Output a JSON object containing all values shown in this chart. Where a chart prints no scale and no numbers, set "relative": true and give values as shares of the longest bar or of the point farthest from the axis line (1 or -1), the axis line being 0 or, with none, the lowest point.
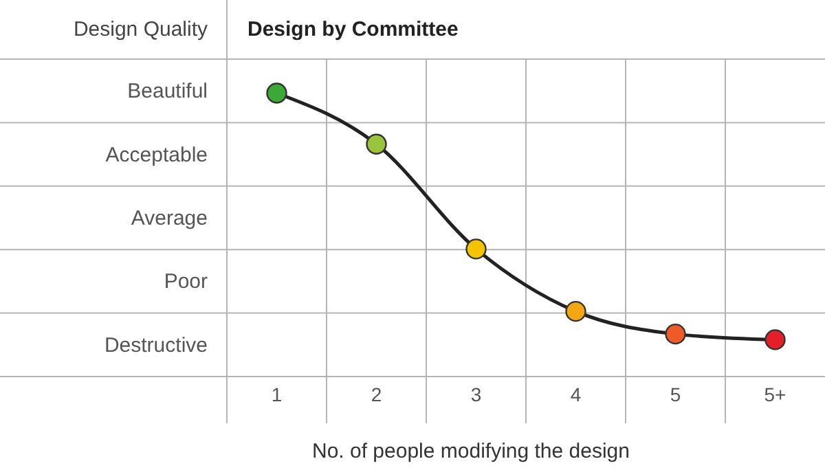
{
  "chart_data": {
    "type": "line",
    "title": "Design by Committee",
    "ylabel": "Design Quality",
    "xlabel": "No. of people modifying the design",
    "categories": [
      "1",
      "2",
      "3",
      "4",
      "5",
      "5+"
    ],
    "y_categories": [
      "Beautiful",
      "Acceptable",
      "Average",
      "Poor",
      "Destructive"
    ],
    "series": [
      {
        "color": "#222222",
        "colors": [
          "#3aa935",
          "#9ac43c",
          "#f5c400",
          "#f3a712",
          "#ef5a28",
          "#e3202a"
        ],
        "values": [
          1,
          0.82,
          0.45,
          0.23,
          0.15,
          0.13
        ]
      }
    ],
    "relative": true,
    "grid": true,
    "marker": "circle",
    "line_style": "solid"
  }
}
